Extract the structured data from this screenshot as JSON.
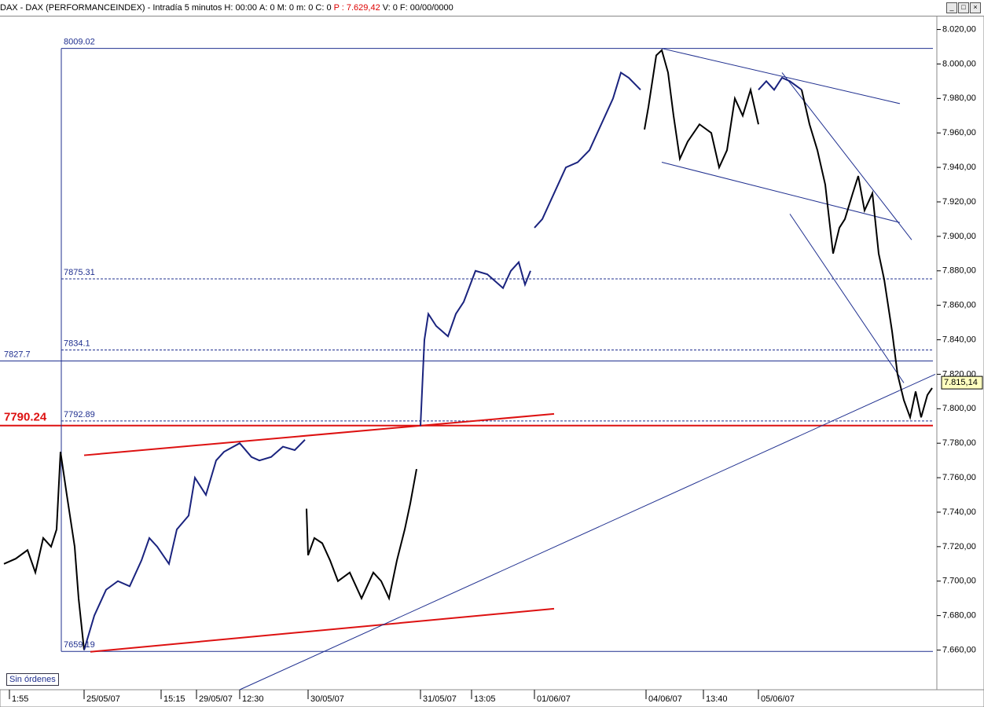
{
  "window": {
    "title": "DAX - DAX (PERFORMANCEINDEX) - Intradía 5 minutos",
    "status": [
      "H: 00:00",
      "A: 0",
      "M: 0",
      "m: 0",
      "C: 0",
      "P : 7.629,42",
      "V: 0",
      "F: 00/00/0000"
    ],
    "orders_button": "Sin órdenes"
  },
  "chart_data": {
    "type": "line",
    "xlim": [
      0,
      1192
    ],
    "ylim": [
      7637,
      8028
    ],
    "xticks": [
      {
        "value": 12,
        "label": "1:55"
      },
      {
        "value": 107,
        "label": "25/05/07"
      },
      {
        "value": 205,
        "label": "15:15"
      },
      {
        "value": 250,
        "label": "29/05/07"
      },
      {
        "value": 305,
        "label": "12:30"
      },
      {
        "value": 392,
        "label": "30/05/07"
      },
      {
        "value": 535,
        "label": "31/05/07"
      },
      {
        "value": 600,
        "label": "13:05"
      },
      {
        "value": 680,
        "label": "01/06/07"
      },
      {
        "value": 822,
        "label": "04/06/07"
      },
      {
        "value": 895,
        "label": "13:40"
      },
      {
        "value": 965,
        "label": "05/06/07"
      }
    ],
    "yticks": [
      {
        "value": 7660,
        "label": "7.660,00"
      },
      {
        "value": 7680,
        "label": "7.680,00"
      },
      {
        "value": 7700,
        "label": "7.700,00"
      },
      {
        "value": 7720,
        "label": "7.720,00"
      },
      {
        "value": 7740,
        "label": "7.740,00"
      },
      {
        "value": 7760,
        "label": "7.760,00"
      },
      {
        "value": 7780,
        "label": "7.780,00"
      },
      {
        "value": 7800,
        "label": "7.800,00"
      },
      {
        "value": 7820,
        "label": "7.820,00"
      },
      {
        "value": 7840,
        "label": "7.840,00"
      },
      {
        "value": 7860,
        "label": "7.860,00"
      },
      {
        "value": 7880,
        "label": "7.880,00"
      },
      {
        "value": 7900,
        "label": "7.900,00"
      },
      {
        "value": 7920,
        "label": "7.920,00"
      },
      {
        "value": 7940,
        "label": "7.940,00"
      },
      {
        "value": 7960,
        "label": "7.960,00"
      },
      {
        "value": 7980,
        "label": "7.980,00"
      },
      {
        "value": 8000,
        "label": "8.000,00"
      },
      {
        "value": 8020,
        "label": "8.020,00"
      }
    ],
    "last_price": {
      "value": 7815.14,
      "label": "7.815,14"
    },
    "series": [
      {
        "color": "#000000",
        "x": [
          5,
          20,
          35,
          45,
          55,
          65,
          72,
          77,
          85,
          95,
          100,
          107
        ],
        "values": [
          7710,
          7713,
          7718,
          7705,
          7725,
          7720,
          7730,
          7775,
          7750,
          7720,
          7690,
          7660
        ]
      },
      {
        "color": "#1a237e",
        "x": [
          107,
          120,
          135,
          150,
          165,
          180,
          190,
          200,
          215,
          225,
          240,
          248,
          262,
          275,
          285,
          305,
          320,
          330,
          345,
          360,
          375,
          388
        ],
        "values": [
          7660,
          7680,
          7695,
          7700,
          7697,
          7712,
          7725,
          7720,
          7710,
          7730,
          7738,
          7760,
          7750,
          7770,
          7775,
          7780,
          7772,
          7770,
          7772,
          7778,
          7776,
          7782
        ]
      },
      {
        "color": "#000000",
        "x": [
          390,
          392,
          400,
          410,
          420,
          430,
          445,
          460,
          475,
          485,
          495,
          505,
          515,
          522,
          530
        ],
        "values": [
          7742,
          7715,
          7725,
          7722,
          7712,
          7700,
          7705,
          7690,
          7705,
          7700,
          7690,
          7712,
          7730,
          7745,
          7765
        ]
      },
      {
        "color": "#1a237e",
        "x": [
          535,
          540,
          545,
          555,
          570,
          580,
          590,
          605,
          620,
          640,
          650,
          660,
          668,
          675
        ],
        "values": [
          7790,
          7840,
          7855,
          7848,
          7842,
          7855,
          7862,
          7880,
          7878,
          7870,
          7880,
          7885,
          7872,
          7880
        ]
      },
      {
        "color": "#1a237e",
        "x": [
          680,
          690,
          700,
          710,
          720,
          735,
          750,
          765,
          780,
          790,
          800,
          815
        ],
        "values": [
          7905,
          7910,
          7920,
          7930,
          7940,
          7943,
          7950,
          7965,
          7980,
          7995,
          7992,
          7985
        ]
      },
      {
        "color": "#000000",
        "x": [
          820,
          825,
          835,
          842,
          850,
          857,
          865,
          875,
          890,
          905,
          915,
          925,
          935,
          945,
          955,
          965
        ],
        "values": [
          7962,
          7975,
          8005,
          8008,
          7995,
          7970,
          7945,
          7955,
          7965,
          7960,
          7940,
          7950,
          7980,
          7970,
          7985,
          7965
        ]
      },
      {
        "color": "#1a237e",
        "x": [
          965,
          975,
          985,
          995,
          1005,
          1020
        ],
        "values": [
          7985,
          7990,
          7985,
          7992,
          7990,
          7985
        ]
      },
      {
        "color": "#000000",
        "x": [
          1020,
          1030,
          1040,
          1050,
          1060,
          1068,
          1075,
          1085,
          1092,
          1100,
          1110,
          1118,
          1125,
          1135,
          1142,
          1150,
          1158,
          1165,
          1172,
          1180,
          1186
        ],
        "values": [
          7985,
          7965,
          7950,
          7930,
          7890,
          7905,
          7910,
          7925,
          7935,
          7915,
          7925,
          7890,
          7875,
          7845,
          7820,
          7805,
          7795,
          7810,
          7795,
          7808,
          7812
        ]
      }
    ],
    "levels": [
      {
        "value": 8009.02,
        "color": "#1f2f8f",
        "dashed": false,
        "full": false
      },
      {
        "value": 7875.31,
        "color": "#1f2f8f",
        "dashed": true,
        "full": false
      },
      {
        "value": 7834.1,
        "color": "#1f2f8f",
        "dashed": true,
        "full": false
      },
      {
        "value": 7827.7,
        "color": "#1f2f8f",
        "dashed": false,
        "full": true
      },
      {
        "value": 7792.89,
        "color": "#1f2f8f",
        "dashed": true,
        "full": false
      },
      {
        "value": 7790.24,
        "color": "#dd1111",
        "dashed": false,
        "full": true
      },
      {
        "value": 7659.19,
        "color": "#1f2f8f",
        "dashed": false,
        "full": false
      }
    ],
    "trendlines": [
      {
        "color": "#1f2f8f",
        "x": [
          78,
          78
        ],
        "values": [
          8009.02,
          7659.19
        ]
      },
      {
        "color": "#dd1111",
        "x": [
          107,
          705
        ],
        "values": [
          7773,
          7797
        ]
      },
      {
        "color": "#dd1111",
        "x": [
          115,
          705
        ],
        "values": [
          7659,
          7684
        ]
      },
      {
        "color": "#1f2f8f",
        "x": [
          305,
          1190
        ],
        "values": [
          7637,
          7820
        ]
      },
      {
        "color": "#1f2f8f",
        "x": [
          842,
          1145
        ],
        "values": [
          8009,
          7977
        ]
      },
      {
        "color": "#1f2f8f",
        "x": [
          842,
          1145
        ],
        "values": [
          7943,
          7908
        ]
      },
      {
        "color": "#1f2f8f",
        "x": [
          995,
          1160
        ],
        "values": [
          7995,
          7898
        ]
      },
      {
        "color": "#1f2f8f",
        "x": [
          1005,
          1150
        ],
        "values": [
          7913,
          7815
        ]
      }
    ]
  }
}
